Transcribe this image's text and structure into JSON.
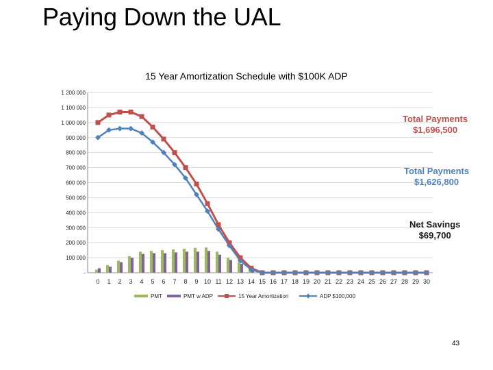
{
  "slide": {
    "title": "Paying Down the UAL",
    "page_number": "43"
  },
  "colors": {
    "pmt": "#9bbb59",
    "pmt_adp": "#8064a2",
    "amort": "#c0504d",
    "adp": "#4f81bd",
    "grid": "#d9d9d9"
  },
  "chart_data": {
    "type": "line",
    "title": "15 Year Amortization Schedule with $100K ADP",
    "x": [
      0,
      1,
      2,
      3,
      4,
      5,
      6,
      7,
      8,
      9,
      10,
      11,
      12,
      13,
      14,
      15,
      16,
      17,
      18,
      19,
      20,
      21,
      22,
      23,
      24,
      25,
      26,
      27,
      28,
      29,
      30
    ],
    "ylim": [
      0,
      1200000
    ],
    "yticks": [
      0,
      100000,
      200000,
      300000,
      400000,
      500000,
      600000,
      700000,
      800000,
      900000,
      1000000,
      1100000,
      1200000
    ],
    "ytick_labels": [
      "-",
      "100 000",
      "200 000",
      "300 000",
      "400 000",
      "500 000",
      "600 000",
      "700 000",
      "800 000",
      "900 000",
      "1 000 000",
      "1 100 000",
      "1 200 000"
    ],
    "grid": true,
    "series": [
      {
        "name": "PMT",
        "kind": "bar",
        "values": [
          20000,
          50000,
          80000,
          110000,
          140000,
          145000,
          150000,
          155000,
          160000,
          165000,
          168000,
          140000,
          100000,
          70000,
          20000,
          0,
          0,
          0,
          0,
          0,
          0,
          0,
          0,
          0,
          0,
          0,
          0,
          0,
          0,
          0,
          0
        ]
      },
      {
        "name": "PMT w ADP",
        "kind": "bar",
        "values": [
          30000,
          40000,
          70000,
          100000,
          125000,
          130000,
          130000,
          135000,
          140000,
          140000,
          145000,
          120000,
          85000,
          60000,
          15000,
          0,
          0,
          0,
          0,
          0,
          0,
          0,
          0,
          0,
          0,
          0,
          0,
          0,
          0,
          0,
          0
        ]
      },
      {
        "name": "15 Year Amortization",
        "kind": "line",
        "marker": "square",
        "values": [
          1000000,
          1050000,
          1070000,
          1070000,
          1040000,
          970000,
          890000,
          800000,
          700000,
          590000,
          460000,
          320000,
          200000,
          100000,
          30000,
          0,
          0,
          0,
          0,
          0,
          0,
          0,
          0,
          0,
          0,
          0,
          0,
          0,
          0,
          0,
          0
        ]
      },
      {
        "name": "ADP $100,000",
        "kind": "line",
        "marker": "diamond",
        "values": [
          900000,
          950000,
          960000,
          960000,
          930000,
          870000,
          800000,
          720000,
          630000,
          520000,
          410000,
          290000,
          180000,
          80000,
          20000,
          0,
          0,
          0,
          0,
          0,
          0,
          0,
          0,
          0,
          0,
          0,
          0,
          0,
          0,
          0,
          0
        ]
      }
    ],
    "annotations": [
      {
        "line1": "Total Payments",
        "line2": "$1,696,500"
      },
      {
        "line1": "Total Payments",
        "line2": "$1,626,800"
      },
      {
        "line1": "Net Savings",
        "line2": "$69,700"
      }
    ]
  }
}
